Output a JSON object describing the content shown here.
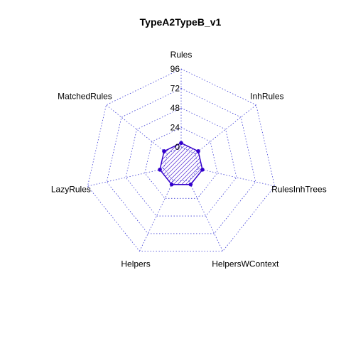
{
  "chart_data": {
    "type": "radar",
    "title": "TypeA2TypeB_v1",
    "axes": [
      "Rules",
      "InhRules",
      "RulesInhTrees",
      "HelpersWContext",
      "Helpers",
      "LazyRules",
      "MatchedRules"
    ],
    "ticks": [
      "0",
      "24",
      "48",
      "72",
      "96"
    ],
    "range": [
      0,
      96
    ],
    "series": [
      {
        "values": [
          5,
          5,
          5,
          5,
          5,
          5,
          5
        ],
        "color": "#3300cc",
        "fill": "hatched"
      }
    ],
    "grid": true,
    "grid_color": "#3b3bd6"
  }
}
